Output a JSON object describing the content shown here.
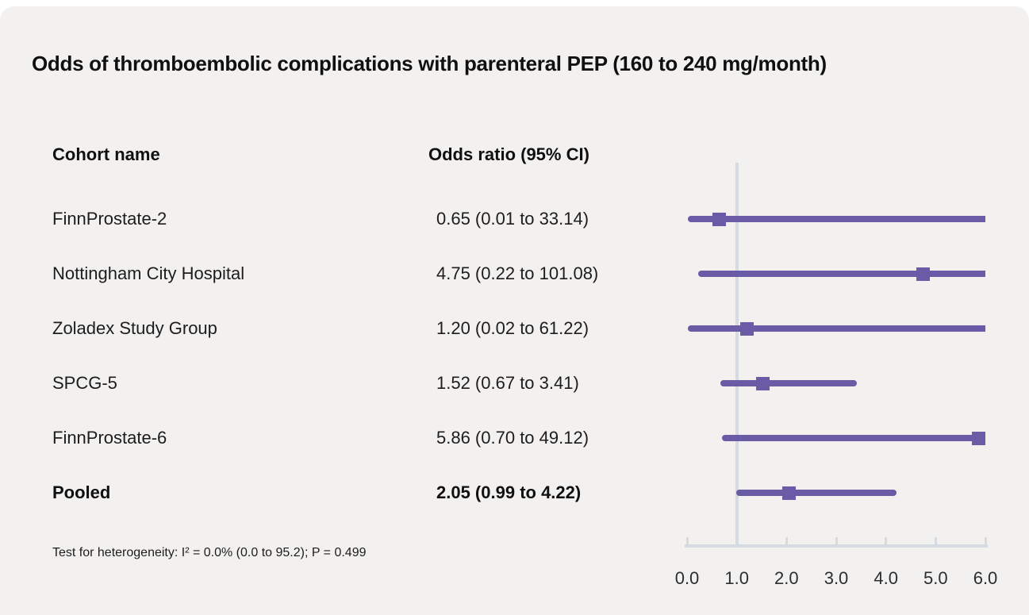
{
  "chart_data": {
    "type": "forest",
    "title": "Odds of thromboembolic complications with parenteral PEP (160 to 240 mg/month)",
    "columns": {
      "cohort": "Cohort name",
      "odds_ratio": "Odds ratio (95% CI)"
    },
    "rows": [
      {
        "name": "FinnProstate-2",
        "label": "0.65 (0.01 to 33.14)",
        "or": 0.65,
        "ci_low": 0.01,
        "ci_high": 33.14,
        "pooled": false
      },
      {
        "name": "Nottingham City Hospital",
        "label": "4.75 (0.22 to 101.08)",
        "or": 4.75,
        "ci_low": 0.22,
        "ci_high": 101.08,
        "pooled": false
      },
      {
        "name": "Zoladex Study Group",
        "label": "1.20 (0.02 to 61.22)",
        "or": 1.2,
        "ci_low": 0.02,
        "ci_high": 61.22,
        "pooled": false
      },
      {
        "name": "SPCG-5",
        "label": "1.52 (0.67 to 3.41)",
        "or": 1.52,
        "ci_low": 0.67,
        "ci_high": 3.41,
        "pooled": false
      },
      {
        "name": "FinnProstate-6",
        "label": "5.86 (0.70 to 49.12)",
        "or": 5.86,
        "ci_low": 0.7,
        "ci_high": 49.12,
        "pooled": false
      },
      {
        "name": "Pooled",
        "label": "2.05 (0.99 to 4.22)",
        "or": 2.05,
        "ci_low": 0.99,
        "ci_high": 4.22,
        "pooled": true
      }
    ],
    "axis": {
      "min": 0,
      "max": 6,
      "tick_values": [
        0,
        1,
        2,
        3,
        4,
        5,
        6
      ],
      "tick_labels": [
        "0.0",
        "1.0",
        "2.0",
        "3.0",
        "4.0",
        "5.0",
        "6.0"
      ],
      "reference_line": 1.0
    },
    "footnote": "Test for heterogeneity: I² = 0.0% (0.0 to 95.2); P = 0.499",
    "colors": {
      "marker": "#695ba6",
      "axis_line": "#d6dbe1",
      "background": "#f2f1f0",
      "text": "#1a1a1a"
    }
  }
}
